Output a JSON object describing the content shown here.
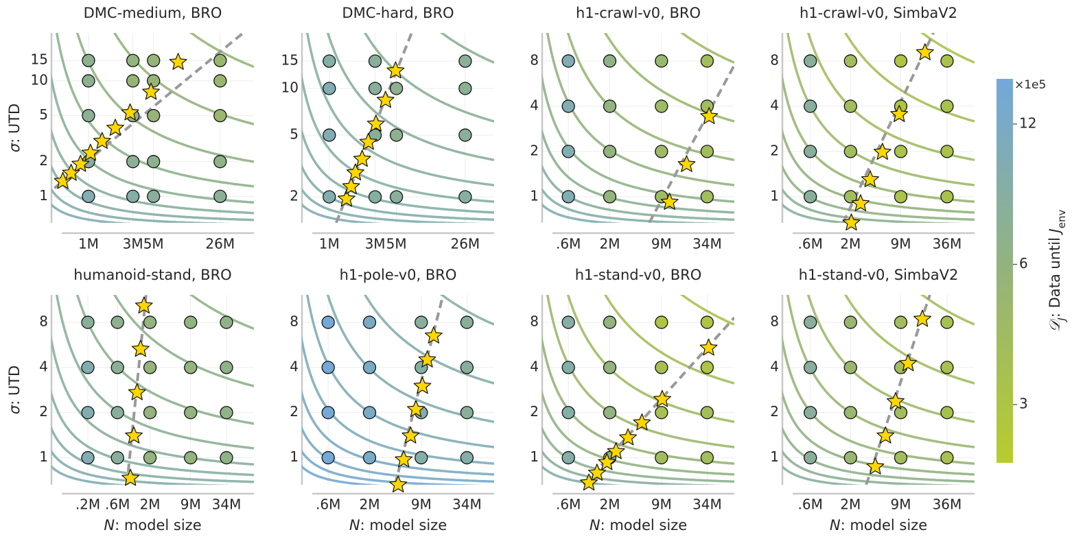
{
  "chart_data": [
    {
      "type": "scatter",
      "title": "DMC-medium, BRO",
      "ylabel": [
        "σ",
        ": UTD"
      ],
      "xscale": "log",
      "yscale": "log",
      "grid": true,
      "xlim": [
        400000,
        60000000
      ],
      "ylim": [
        0.59,
        26
      ],
      "xticks": [
        {
          "value": 1000000,
          "label": "1M"
        },
        {
          "value": 3000000,
          "label": "3M"
        },
        {
          "value": 5000000,
          "label": "5M"
        },
        {
          "value": 26000000,
          "label": "26M"
        }
      ],
      "yticks": [
        1,
        2,
        5,
        10,
        15
      ],
      "points": {
        "x": [
          1000000,
          1000000,
          1000000,
          1000000,
          1000000,
          3000000,
          3000000,
          3000000,
          3000000,
          3000000,
          5000000,
          5000000,
          5000000,
          5000000,
          5000000,
          26000000,
          26000000,
          26000000,
          26000000,
          26000000
        ],
        "y": [
          1,
          2,
          5,
          10,
          15,
          1,
          2,
          5,
          10,
          15,
          1,
          2,
          5,
          10,
          15,
          1,
          2,
          5,
          10,
          15
        ],
        "values": [
          10,
          8,
          7.5,
          7,
          7,
          9,
          7.5,
          6,
          5.5,
          6,
          8,
          7,
          5.5,
          5.5,
          5.5,
          7.5,
          6.5,
          5,
          5,
          5
        ]
      },
      "stars": {
        "x": [
          530000,
          650000,
          820000,
          1050000,
          1400000,
          1940000,
          2800000,
          4700000,
          9200000
        ],
        "y": [
          1.35,
          1.59,
          1.9,
          2.37,
          3.0,
          3.9,
          5.3,
          8.0,
          14.5
        ],
        "color": "#ffd700"
      },
      "fit_line": {
        "x": [
          430000,
          46000000
        ],
        "y": [
          1.18,
          26
        ],
        "color": "#999999"
      }
    },
    {
      "type": "scatter",
      "title": "DMC-hard, BRO",
      "xscale": "log",
      "yscale": "log",
      "grid": true,
      "xlim": [
        520000,
        52000000
      ],
      "ylim": [
        1.36,
        22.8
      ],
      "xticks": [
        {
          "value": 1000000,
          "label": "1M"
        },
        {
          "value": 3000000,
          "label": "3M"
        },
        {
          "value": 5000000,
          "label": "5M"
        },
        {
          "value": 26000000,
          "label": "26M"
        }
      ],
      "yticks": [
        2,
        5,
        10,
        15
      ],
      "points": {
        "x": [
          1000000,
          1000000,
          1000000,
          1000000,
          3000000,
          3000000,
          3000000,
          3000000,
          5000000,
          5000000,
          5000000,
          26000000,
          26000000,
          26000000,
          26000000
        ],
        "y": [
          2,
          5,
          10,
          15,
          2,
          5,
          10,
          15,
          2,
          5,
          10,
          2,
          5,
          10,
          15
        ],
        "values": [
          9.5,
          10,
          10,
          9,
          8.5,
          8,
          8,
          8,
          8,
          7,
          7,
          8.5,
          8,
          7.5,
          7.5
        ]
      },
      "stars": {
        "x": [
          1510000,
          1690000,
          1870000,
          2200000,
          2550000,
          3060000,
          3850000,
          4900000
        ],
        "y": [
          1.94,
          2.33,
          2.86,
          3.5,
          4.5,
          5.9,
          8.4,
          13.0
        ],
        "color": "#ffd700"
      },
      "fit_line": {
        "x": [
          1180000,
          7200000
        ],
        "y": [
          1.36,
          22.8
        ],
        "color": "#999999"
      }
    },
    {
      "type": "scatter",
      "title": "h1-crawl-v0, BRO",
      "xscale": "log",
      "yscale": "log",
      "grid": true,
      "xlim": [
        280000,
        75000000
      ],
      "ylim": [
        0.67,
        12.3
      ],
      "xticks": [
        {
          "value": 600000,
          "label": ".6M"
        },
        {
          "value": 2000000,
          "label": "2M"
        },
        {
          "value": 9000000,
          "label": "9M"
        },
        {
          "value": 34000000,
          "label": "34M"
        }
      ],
      "yticks": [
        1,
        2,
        4,
        8
      ],
      "points": {
        "x": [
          600000,
          600000,
          600000,
          600000,
          2000000,
          2000000,
          2000000,
          2000000,
          9000000,
          9000000,
          9000000,
          9000000,
          34000000,
          34000000,
          34000000,
          34000000
        ],
        "y": [
          1,
          2,
          4,
          8,
          1,
          2,
          4,
          8,
          1,
          2,
          4,
          8,
          1,
          2,
          4,
          8
        ],
        "values": [
          10,
          10,
          10,
          10,
          6,
          6,
          6,
          6.5,
          4.5,
          4.5,
          4.5,
          5,
          4,
          4,
          4,
          4
        ]
      },
      "stars": {
        "x": [
          11400000,
          18700000,
          36000000
        ],
        "y": [
          0.92,
          1.64,
          3.42
        ],
        "color": "#ffd700"
      },
      "fit_line": {
        "x": [
          6300000,
          75000000
        ],
        "y": [
          0.67,
          7.5
        ],
        "color": "#999999"
      }
    },
    {
      "type": "scatter",
      "title": "h1-crawl-v0, SimbaV2",
      "xscale": "log",
      "yscale": "log",
      "grid": true,
      "xlim": [
        260000,
        82000000
      ],
      "ylim": [
        0.67,
        12.3
      ],
      "xticks": [
        {
          "value": 600000,
          "label": ".6M"
        },
        {
          "value": 2000000,
          "label": "2M"
        },
        {
          "value": 9000000,
          "label": "9M"
        },
        {
          "value": 36000000,
          "label": "36M"
        }
      ],
      "yticks": [
        1,
        2,
        4,
        8
      ],
      "points": {
        "x": [
          600000,
          600000,
          600000,
          600000,
          2000000,
          2000000,
          2000000,
          2000000,
          9000000,
          9000000,
          9000000,
          9000000,
          36000000,
          36000000,
          36000000,
          36000000
        ],
        "y": [
          1,
          2,
          4,
          8,
          1,
          2,
          4,
          8,
          1,
          2,
          4,
          8,
          1,
          2,
          4,
          8
        ],
        "values": [
          8,
          8,
          8,
          8,
          4,
          4,
          4,
          4,
          3.2,
          3.2,
          3,
          3,
          3.3,
          3.3,
          3.3,
          3.3
        ]
      },
      "stars": {
        "x": [
          2050000,
          2700000,
          3600000,
          5200000,
          8600000,
          18600000
        ],
        "y": [
          0.67,
          0.9,
          1.3,
          1.98,
          3.53,
          9.1
        ],
        "color": "#ffd700"
      },
      "fit_line": {
        "x": [
          1600000,
          23900000
        ],
        "y": [
          0.67,
          12.3
        ],
        "color": "#999999"
      }
    },
    {
      "type": "scatter",
      "title": "humanoid-stand, BRO",
      "xlabel": [
        "N",
        ": model size"
      ],
      "ylabel": [
        "σ",
        ": UTD"
      ],
      "xscale": "log",
      "yscale": "log",
      "grid": true,
      "xlim": [
        52000,
        94000000
      ],
      "ylim": [
        0.66,
        12.2
      ],
      "xticks": [
        {
          "value": 200000,
          "label": ".2M"
        },
        {
          "value": 600000,
          "label": ".6M"
        },
        {
          "value": 2000000,
          "label": "2M"
        },
        {
          "value": 9000000,
          "label": "9M"
        },
        {
          "value": 34000000,
          "label": "34M"
        }
      ],
      "yticks": [
        1,
        2,
        4,
        8
      ],
      "points": {
        "x": [
          200000,
          200000,
          200000,
          200000,
          600000,
          600000,
          600000,
          600000,
          2000000,
          2000000,
          2000000,
          2000000,
          9000000,
          9000000,
          9000000,
          9000000,
          34000000,
          34000000,
          34000000,
          34000000
        ],
        "y": [
          1,
          2,
          4,
          8,
          1,
          2,
          4,
          8,
          1,
          2,
          4,
          8,
          1,
          2,
          4,
          8,
          1,
          2,
          4,
          8
        ],
        "values": [
          10,
          9.5,
          9.5,
          8,
          8,
          8,
          7.5,
          7,
          6,
          6,
          6,
          6,
          6,
          6,
          6,
          6,
          6.5,
          6.5,
          6.5,
          6.5
        ]
      },
      "stars": {
        "x": [
          970000,
          1100000,
          1240000,
          1410000,
          1600000
        ],
        "y": [
          0.73,
          1.4,
          2.72,
          5.3,
          10.3
        ],
        "color": "#ffd700"
      },
      "fit_line": {
        "x": [
          850000,
          1730000
        ],
        "y": [
          0.66,
          12.2
        ],
        "color": "#999999"
      }
    },
    {
      "type": "scatter",
      "title": "h1-pole-v0, BRO",
      "xlabel": [
        "N",
        ": model size"
      ],
      "xscale": "log",
      "yscale": "log",
      "grid": true,
      "xlim": [
        280000,
        75000000
      ],
      "ylim": [
        0.66,
        12.2
      ],
      "xticks": [
        {
          "value": 600000,
          "label": ".6M"
        },
        {
          "value": 2000000,
          "label": "2M"
        },
        {
          "value": 9000000,
          "label": "9M"
        },
        {
          "value": 34000000,
          "label": "34M"
        }
      ],
      "yticks": [
        1,
        2,
        4,
        8
      ],
      "points": {
        "x": [
          600000,
          600000,
          600000,
          600000,
          2000000,
          2000000,
          2000000,
          2000000,
          9000000,
          9000000,
          9000000,
          9000000,
          34000000,
          34000000,
          34000000,
          34000000
        ],
        "y": [
          1,
          2,
          4,
          8,
          1,
          2,
          4,
          8,
          1,
          2,
          4,
          8,
          1,
          2,
          4,
          8
        ],
        "values": [
          14,
          14,
          14,
          14,
          12,
          12,
          12,
          12,
          9,
          9,
          8.5,
          8,
          9,
          8,
          8,
          8
        ]
      },
      "stars": {
        "x": [
          4600000,
          5400000,
          6600000,
          7700000,
          9300000,
          10700000,
          12900000
        ],
        "y": [
          0.66,
          0.97,
          1.4,
          2.1,
          3.0,
          4.5,
          6.5
        ],
        "color": "#ffd700"
      },
      "fit_line": {
        "x": [
          4200000,
          17000000
        ],
        "y": [
          0.66,
          12.2
        ],
        "color": "#999999"
      }
    },
    {
      "type": "scatter",
      "title": "h1-stand-v0, BRO",
      "xlabel": [
        "N",
        ": model size"
      ],
      "xscale": "log",
      "yscale": "log",
      "grid": true,
      "xlim": [
        280000,
        75000000
      ],
      "ylim": [
        0.66,
        12.2
      ],
      "xticks": [
        {
          "value": 600000,
          "label": ".6M"
        },
        {
          "value": 2000000,
          "label": "2M"
        },
        {
          "value": 9000000,
          "label": "9M"
        },
        {
          "value": 34000000,
          "label": "34M"
        }
      ],
      "yticks": [
        1,
        2,
        4,
        8
      ],
      "points": {
        "x": [
          600000,
          600000,
          600000,
          600000,
          2000000,
          2000000,
          2000000,
          2000000,
          9000000,
          9000000,
          9000000,
          9000000,
          34000000,
          34000000,
          34000000,
          34000000
        ],
        "y": [
          1,
          2,
          4,
          8,
          1,
          2,
          4,
          8,
          1,
          2,
          4,
          8,
          1,
          2,
          4,
          8
        ],
        "values": [
          9,
          9,
          9,
          9,
          6,
          6,
          6,
          6,
          4,
          3.5,
          3.5,
          3,
          4,
          4,
          3,
          3
        ]
      },
      "stars": {
        "x": [
          1090000,
          1380000,
          1840000,
          2400000,
          3400000,
          5100000,
          9200000,
          35500000
        ],
        "y": [
          0.68,
          0.79,
          0.93,
          1.1,
          1.36,
          1.71,
          2.45,
          5.4
        ],
        "color": "#ffd700"
      },
      "fit_line": {
        "x": [
          940000,
          75000000
        ],
        "y": [
          0.66,
          8.6
        ],
        "color": "#999999"
      }
    },
    {
      "type": "scatter",
      "title": "h1-stand-v0, SimbaV2",
      "xlabel": [
        "N",
        ": model size"
      ],
      "xscale": "log",
      "yscale": "log",
      "grid": true,
      "xlim": [
        260000,
        82000000
      ],
      "ylim": [
        0.66,
        12.2
      ],
      "xticks": [
        {
          "value": 600000,
          "label": ".6M"
        },
        {
          "value": 2000000,
          "label": "2M"
        },
        {
          "value": 9000000,
          "label": "9M"
        },
        {
          "value": 36000000,
          "label": "36M"
        }
      ],
      "yticks": [
        1,
        2,
        4,
        8
      ],
      "points": {
        "x": [
          600000,
          600000,
          600000,
          600000,
          2000000,
          2000000,
          2000000,
          2000000,
          9000000,
          9000000,
          9000000,
          9000000,
          36000000,
          36000000,
          36000000,
          36000000
        ],
        "y": [
          1,
          2,
          4,
          8,
          1,
          2,
          4,
          8,
          1,
          2,
          4,
          8,
          1,
          2,
          4,
          8
        ],
        "values": [
          8,
          8,
          8,
          8,
          5,
          5,
          5,
          5,
          4,
          4,
          4,
          4,
          3.5,
          3.5,
          3.5,
          3.5
        ]
      },
      "stars": {
        "x": [
          4200000,
          5700000,
          7700000,
          11200000,
          17200000
        ],
        "y": [
          0.87,
          1.4,
          2.37,
          4.25,
          8.4
        ],
        "color": "#ffd700"
      },
      "fit_line": {
        "x": [
          3200000,
          21500000
        ],
        "y": [
          0.66,
          12.2
        ],
        "color": "#999999"
      }
    }
  ],
  "colorbar": {
    "scale": "log",
    "lim": [
      2.25,
      15
    ],
    "ticks": [
      3,
      6,
      12
    ],
    "scale_label": "×1e5",
    "label": [
      "𝒟",
      "J",
      ": Data until ",
      "J",
      "env"
    ],
    "colormap": [
      "#b8cc2c",
      "#94b37c",
      "#72a8dc"
    ]
  }
}
